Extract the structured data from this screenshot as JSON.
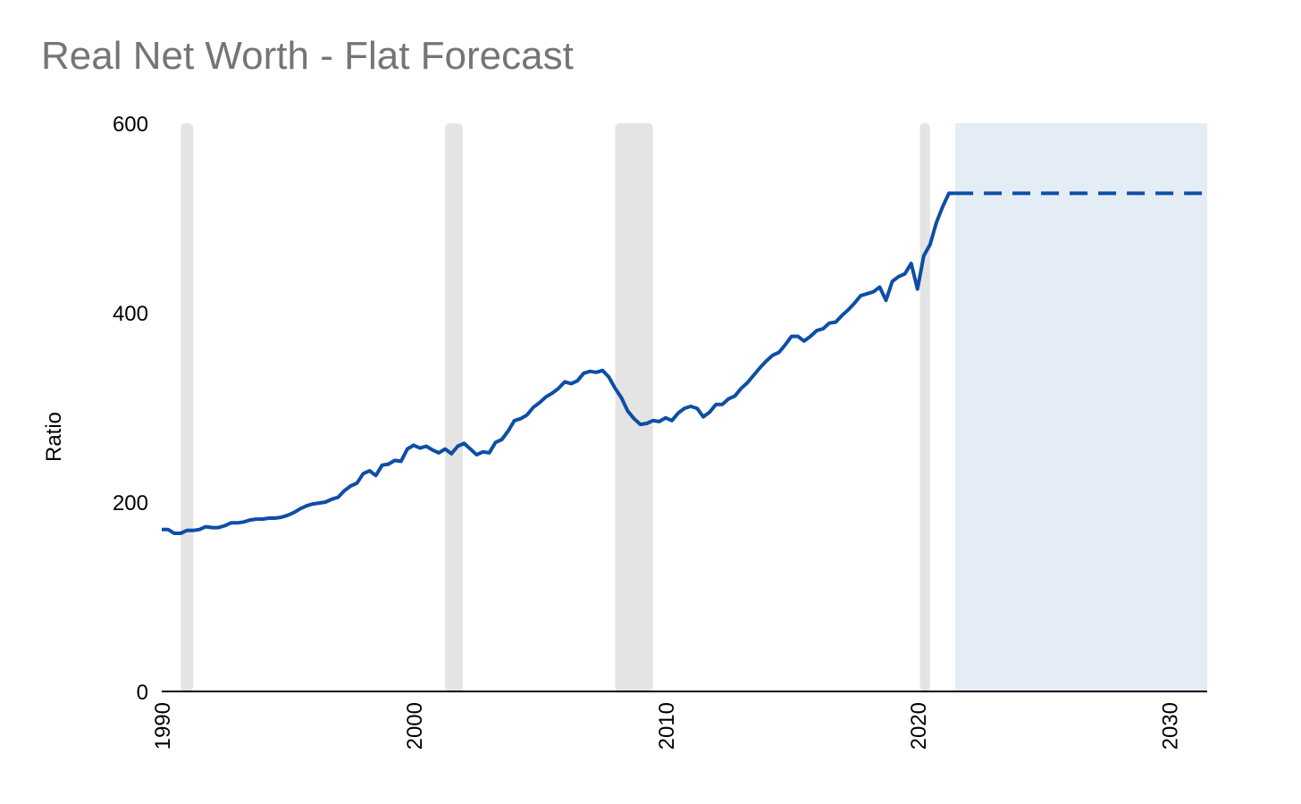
{
  "chart_data": {
    "type": "line",
    "title": "Real Net Worth - Flat Forecast",
    "xlabel": "",
    "ylabel": "Ratio",
    "xlim": [
      1990,
      2031.5
    ],
    "ylim": [
      0,
      600
    ],
    "y_ticks": [
      0,
      200,
      400,
      600
    ],
    "x_ticks": [
      1990,
      2000,
      2010,
      2020,
      2030
    ],
    "grid": false,
    "legend": "none",
    "colors": {
      "line": "#0D4EA6",
      "recession": "#E4E4E4",
      "forecast_band": "#E4ECF6",
      "axis": "#000000",
      "title": "#757575"
    },
    "recessions": [
      [
        1990.75,
        1991.25
      ],
      [
        2001.25,
        2001.95
      ],
      [
        2008.0,
        2009.5
      ],
      [
        2020.1,
        2020.5
      ]
    ],
    "forecast_region": [
      2021.5,
      2031.5
    ],
    "series": [
      {
        "style": "solid",
        "x": [
          1990.0,
          1990.25,
          1990.5,
          1990.75,
          1991.0,
          1991.25,
          1991.5,
          1991.75,
          1992.0,
          1992.25,
          1992.5,
          1992.75,
          1993.0,
          1993.25,
          1993.5,
          1993.75,
          1994.0,
          1994.25,
          1994.5,
          1994.75,
          1995.0,
          1995.25,
          1995.5,
          1995.75,
          1996.0,
          1996.25,
          1996.5,
          1996.75,
          1997.0,
          1997.25,
          1997.5,
          1997.75,
          1998.0,
          1998.25,
          1998.5,
          1998.75,
          1999.0,
          1999.25,
          1999.5,
          1999.75,
          2000.0,
          2000.25,
          2000.5,
          2000.75,
          2001.0,
          2001.25,
          2001.5,
          2001.75,
          2002.0,
          2002.25,
          2002.5,
          2002.75,
          2003.0,
          2003.25,
          2003.5,
          2003.75,
          2004.0,
          2004.25,
          2004.5,
          2004.75,
          2005.0,
          2005.25,
          2005.5,
          2005.75,
          2006.0,
          2006.25,
          2006.5,
          2006.75,
          2007.0,
          2007.25,
          2007.5,
          2007.75,
          2008.0,
          2008.25,
          2008.5,
          2008.75,
          2009.0,
          2009.25,
          2009.5,
          2009.75,
          2010.0,
          2010.25,
          2010.5,
          2010.75,
          2011.0,
          2011.25,
          2011.5,
          2011.75,
          2012.0,
          2012.25,
          2012.5,
          2012.75,
          2013.0,
          2013.25,
          2013.5,
          2013.75,
          2014.0,
          2014.25,
          2014.5,
          2014.75,
          2015.0,
          2015.25,
          2015.5,
          2015.75,
          2016.0,
          2016.25,
          2016.5,
          2016.75,
          2017.0,
          2017.25,
          2017.5,
          2017.75,
          2018.0,
          2018.25,
          2018.5,
          2018.75,
          2019.0,
          2019.25,
          2019.5,
          2019.75,
          2020.0,
          2020.25,
          2020.5,
          2020.75,
          2021.0,
          2021.25,
          2021.5
        ],
        "values": [
          171,
          171,
          167,
          167,
          170,
          170,
          171,
          174,
          173,
          173,
          175,
          178,
          178,
          179,
          181,
          182,
          182,
          183,
          183,
          184,
          186,
          189,
          193,
          196,
          198,
          199,
          200,
          203,
          205,
          212,
          217,
          220,
          230,
          233,
          228,
          239,
          240,
          244,
          243,
          256,
          260,
          257,
          259,
          255,
          252,
          256,
          251,
          259,
          262,
          256,
          250,
          253,
          252,
          263,
          266,
          275,
          286,
          288,
          292,
          300,
          305,
          311,
          315,
          320,
          327,
          325,
          328,
          336,
          338,
          337,
          339,
          332,
          320,
          310,
          296,
          288,
          282,
          283,
          286,
          285,
          289,
          286,
          294,
          299,
          301,
          299,
          290,
          295,
          303,
          303,
          309,
          312,
          320,
          326,
          334,
          342,
          349,
          355,
          358,
          366,
          375,
          375,
          370,
          375,
          381,
          383,
          389,
          390,
          397,
          403,
          410,
          418,
          420,
          422,
          427,
          413,
          433,
          438,
          441,
          452,
          425,
          460,
          472,
          495,
          512,
          526,
          526
        ]
      },
      {
        "style": "dashed",
        "x": [
          2021.5,
          2031.5
        ],
        "values": [
          526,
          526
        ]
      }
    ]
  }
}
